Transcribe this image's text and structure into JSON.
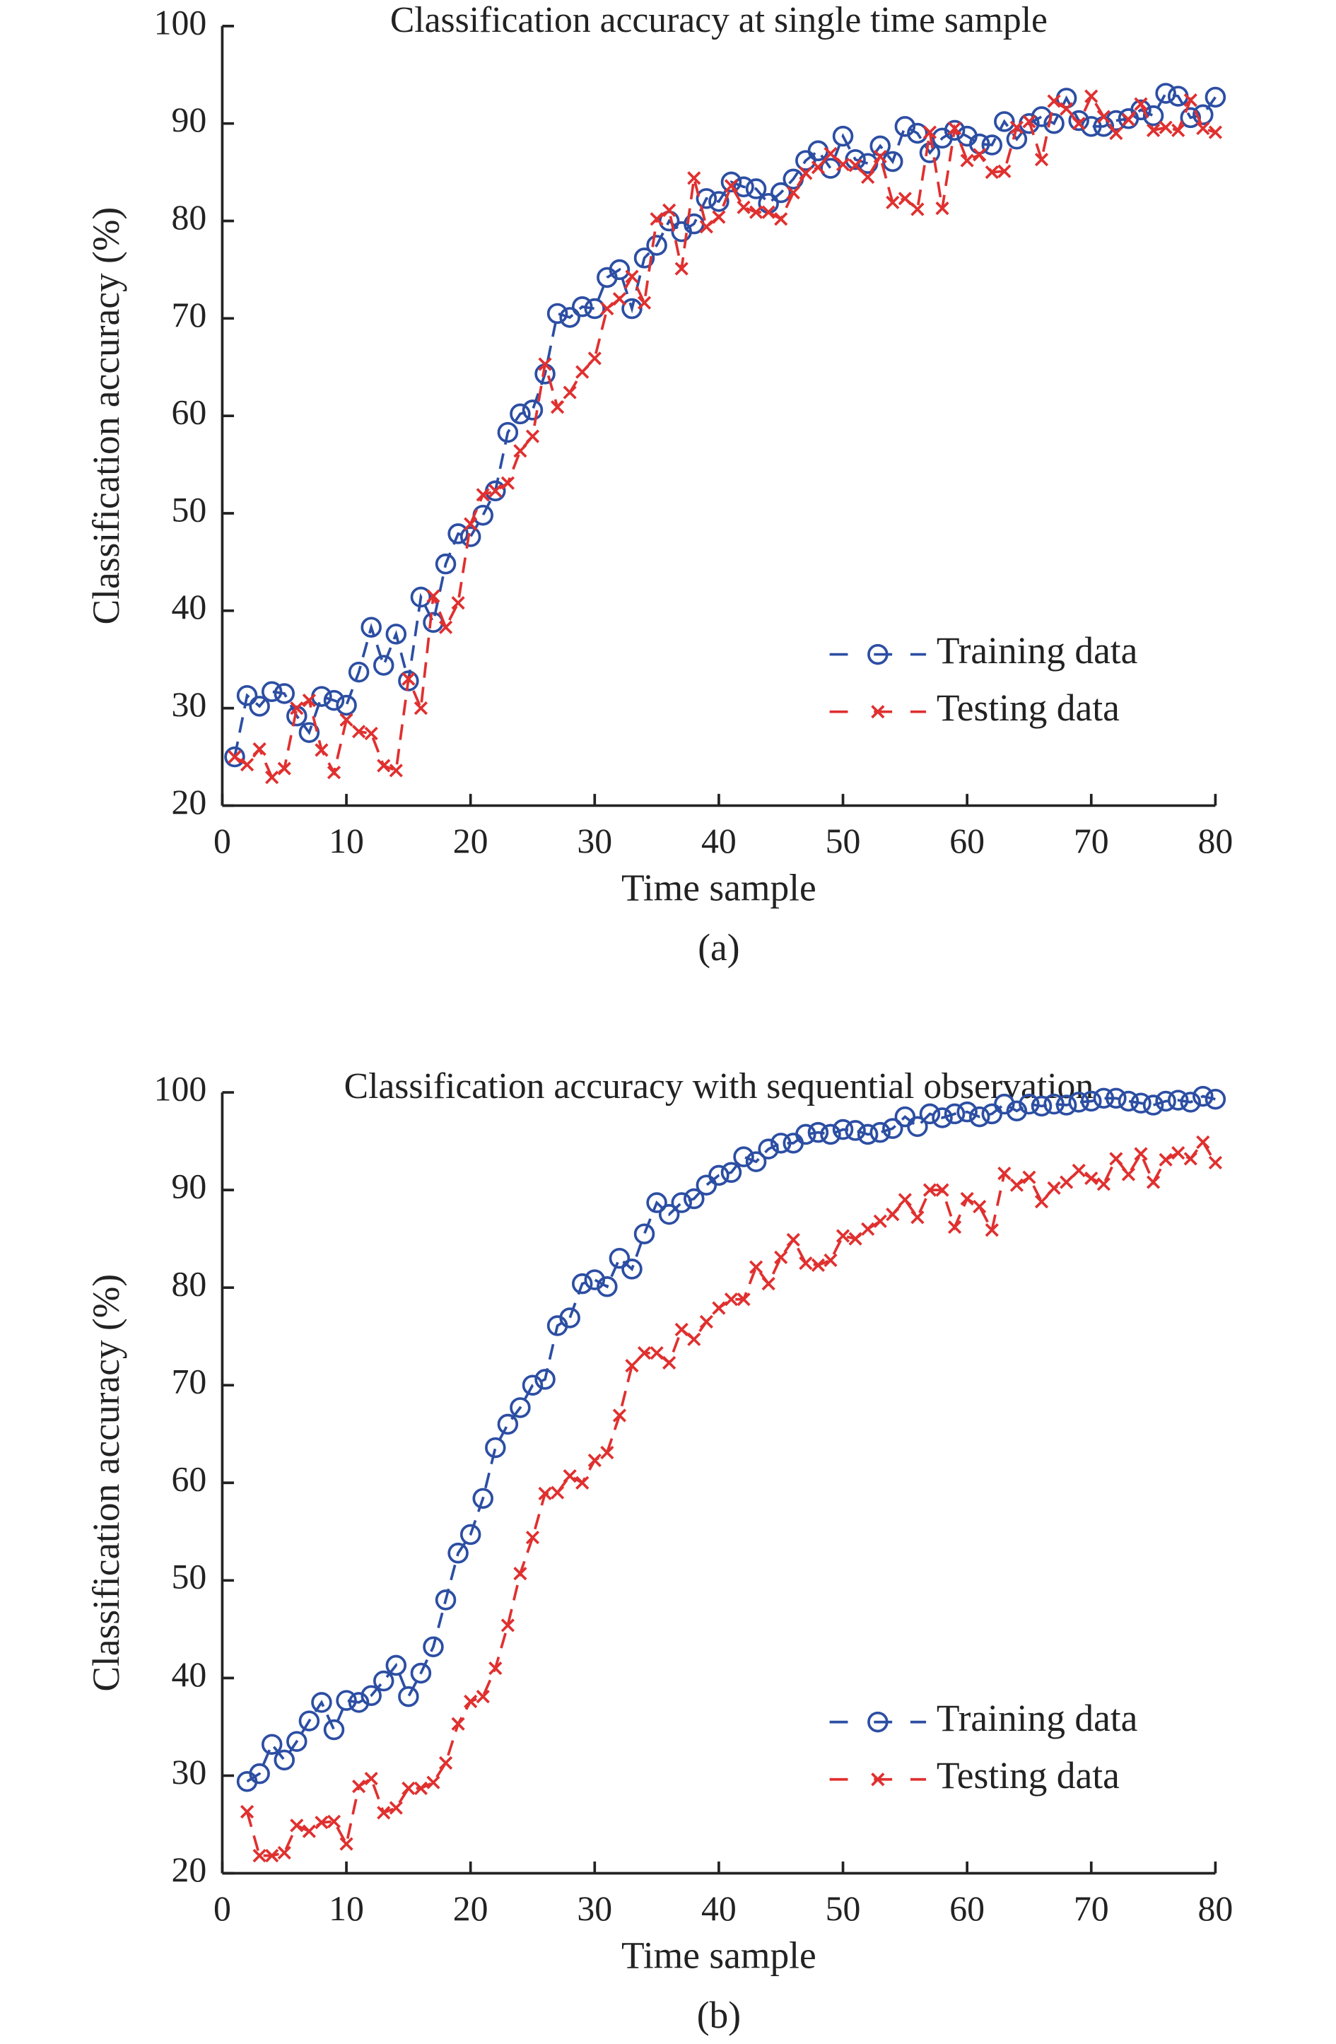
{
  "chart_data": [
    {
      "type": "line",
      "title": "Classification accuracy at single time sample",
      "caption": "(a)",
      "xlabel": "Time sample",
      "ylabel": "Classification accuracy (%)",
      "xlim": [
        0,
        80
      ],
      "ylim": [
        20,
        100
      ],
      "xticks": [
        0,
        10,
        20,
        30,
        40,
        50,
        60,
        70,
        80
      ],
      "yticks": [
        20,
        30,
        40,
        50,
        60,
        70,
        80,
        90,
        100
      ],
      "grid": false,
      "legend": "lower right",
      "x": [
        1,
        2,
        3,
        4,
        5,
        6,
        7,
        8,
        9,
        10,
        11,
        12,
        13,
        14,
        15,
        16,
        17,
        18,
        19,
        20,
        21,
        22,
        23,
        24,
        25,
        26,
        27,
        28,
        29,
        30,
        31,
        32,
        33,
        34,
        35,
        36,
        37,
        38,
        39,
        40,
        41,
        42,
        43,
        44,
        45,
        46,
        47,
        48,
        49,
        50,
        51,
        52,
        53,
        54,
        55,
        56,
        57,
        58,
        59,
        60,
        61,
        62,
        63,
        64,
        65,
        66,
        67,
        68,
        69,
        70,
        71,
        72,
        73,
        74,
        75,
        76,
        77,
        78,
        79,
        80
      ],
      "series": [
        {
          "name": "Training data",
          "color": "#2c4ea3",
          "marker": "o",
          "values": [
            25,
            31.3,
            30.2,
            31.7,
            31.5,
            29.2,
            27.5,
            31.2,
            30.8,
            30.3,
            33.7,
            38.3,
            34.4,
            37.6,
            32.8,
            41.4,
            38.8,
            44.8,
            47.9,
            47.6,
            49.8,
            52.3,
            58.3,
            60.2,
            60.6,
            64.3,
            70.5,
            70.1,
            71.2,
            71,
            74.2,
            75,
            71,
            76.2,
            77.5,
            80,
            78.9,
            79.7,
            82.3,
            82,
            84,
            83.5,
            83.3,
            81.8,
            82.9,
            84.3,
            86.2,
            87.2,
            85.4,
            88.7,
            86.3,
            85.9,
            87.7,
            86.1,
            89.7,
            89,
            87,
            88.5,
            89.3,
            88.7,
            87.9,
            87.8,
            90.2,
            88.4,
            90,
            90.7,
            90,
            92.6,
            90.3,
            89.7,
            89.7,
            90.3,
            90.5,
            91.4,
            90.8,
            93.1,
            92.8,
            90.6,
            90.9,
            92.7
          ]
        },
        {
          "name": "Testing data",
          "color": "#e0302f",
          "marker": "x",
          "values": [
            25,
            24.2,
            25.8,
            22.9,
            23.8,
            30,
            30.8,
            25.7,
            23.4,
            28.8,
            27.6,
            27.4,
            24.1,
            23.6,
            33,
            30,
            41.5,
            38.3,
            40.8,
            48.9,
            51.9,
            52.3,
            53.1,
            56.4,
            57.9,
            65.3,
            60.9,
            62.4,
            64.5,
            65.9,
            71,
            72,
            74.3,
            71.6,
            80.2,
            81.1,
            75.1,
            84.4,
            79.4,
            80.4,
            83.6,
            81.4,
            80.9,
            80.9,
            80.2,
            82.9,
            84.9,
            85.5,
            86.9,
            85.8,
            85.7,
            84.5,
            86.6,
            81.9,
            82.3,
            81.2,
            89.1,
            81.3,
            89.5,
            86.2,
            86.8,
            85,
            85.1,
            89.6,
            90.2,
            86.3,
            92.3,
            91.5,
            90,
            92.8,
            90.7,
            89,
            90.4,
            92,
            89.3,
            89.6,
            89.3,
            92.4,
            89.5,
            89.1
          ]
        }
      ]
    },
    {
      "type": "line",
      "title": "Classification accuracy with sequential observation",
      "caption": "(b)",
      "xlabel": "Time sample",
      "ylabel": "Classification accuracy (%)",
      "xlim": [
        0,
        80
      ],
      "ylim": [
        20,
        100
      ],
      "xticks": [
        0,
        10,
        20,
        30,
        40,
        50,
        60,
        70,
        80
      ],
      "yticks": [
        20,
        30,
        40,
        50,
        60,
        70,
        80,
        90,
        100
      ],
      "grid": false,
      "legend": "lower right",
      "x": [
        2,
        3,
        4,
        5,
        6,
        7,
        8,
        9,
        10,
        11,
        12,
        13,
        14,
        15,
        16,
        17,
        18,
        19,
        20,
        21,
        22,
        23,
        24,
        25,
        26,
        27,
        28,
        29,
        30,
        31,
        32,
        33,
        34,
        35,
        36,
        37,
        38,
        39,
        40,
        41,
        42,
        43,
        44,
        45,
        46,
        47,
        48,
        49,
        50,
        51,
        52,
        53,
        54,
        55,
        56,
        57,
        58,
        59,
        60,
        61,
        62,
        63,
        64,
        65,
        66,
        67,
        68,
        69,
        70,
        71,
        72,
        73,
        74,
        75,
        76,
        77,
        78,
        79,
        80
      ],
      "series": [
        {
          "name": "Training data",
          "color": "#2c4ea3",
          "marker": "o",
          "values": [
            29.4,
            30.2,
            33.2,
            31.6,
            33.5,
            35.6,
            37.5,
            34.7,
            37.7,
            37.5,
            38.2,
            39.7,
            41.3,
            38.1,
            40.5,
            43.2,
            48,
            52.8,
            54.7,
            58.4,
            63.6,
            66,
            67.7,
            70,
            70.6,
            76.1,
            76.9,
            80.4,
            80.8,
            80.1,
            83,
            81.9,
            85.5,
            88.7,
            87.5,
            88.7,
            89.1,
            90.5,
            91.5,
            91.8,
            93.4,
            92.9,
            94.2,
            94.8,
            94.8,
            95.7,
            95.9,
            95.7,
            96.2,
            96.1,
            95.7,
            95.9,
            96.3,
            97.5,
            96.5,
            97.8,
            97.4,
            97.8,
            98,
            97.5,
            97.8,
            98.8,
            98.1,
            98.8,
            98.6,
            98.8,
            98.7,
            99,
            99.1,
            99.4,
            99.4,
            99.1,
            98.9,
            98.7,
            99.1,
            99.2,
            99,
            99.6,
            99.3
          ]
        },
        {
          "name": "Testing data",
          "color": "#e0302f",
          "marker": "x",
          "values": [
            26.3,
            21.8,
            21.8,
            22.1,
            24.9,
            24.3,
            25.2,
            25.3,
            23,
            28.9,
            29.7,
            26.2,
            26.7,
            28.7,
            28.7,
            29.3,
            31.3,
            35.3,
            37.6,
            38.1,
            41,
            45.4,
            50.7,
            54.4,
            58.9,
            59,
            60.7,
            60,
            62.3,
            63.1,
            66.9,
            72,
            73.3,
            73.3,
            72.3,
            75.7,
            74.7,
            76.5,
            77.9,
            78.8,
            78.8,
            82.1,
            80.4,
            83.1,
            84.9,
            82.5,
            82.3,
            82.8,
            85.3,
            85,
            86,
            86.8,
            87.5,
            89,
            87.2,
            90,
            90,
            86.2,
            89.1,
            88.3,
            85.9,
            91.7,
            90.5,
            91.3,
            88.8,
            90.2,
            90.8,
            92,
            91.2,
            90.6,
            93.2,
            91.6,
            93.7,
            90.8,
            93.1,
            93.8,
            93.2,
            94.9,
            92.8
          ]
        }
      ]
    }
  ]
}
